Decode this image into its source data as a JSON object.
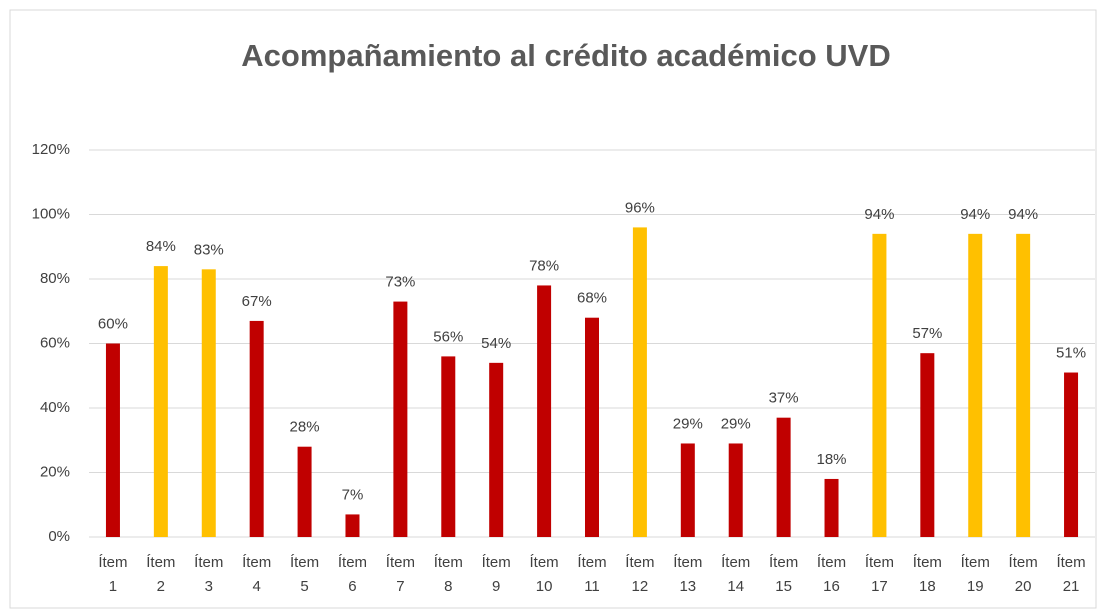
{
  "chart_data": {
    "type": "bar",
    "title": "Acompañamiento al crédito académico UVD",
    "categories": [
      "Ítem 1",
      "Ítem 2",
      "Ítem 3",
      "Ítem 4",
      "Ítem 5",
      "Ítem 6",
      "Ítem 7",
      "Ítem 8",
      "Ítem 9",
      "Ítem 10",
      "Ítem 11",
      "Ítem 12",
      "Ítem 13",
      "Ítem 14",
      "Ítem 15",
      "Ítem 16",
      "Ítem 17",
      "Ítem 18",
      "Ítem 19",
      "Ítem 20",
      "Ítem 21"
    ],
    "values": [
      60,
      84,
      83,
      67,
      28,
      7,
      73,
      56,
      54,
      78,
      68,
      96,
      29,
      29,
      37,
      18,
      94,
      57,
      94,
      94,
      51
    ],
    "value_labels": [
      "60%",
      "84%",
      "83%",
      "67%",
      "28%",
      "7%",
      "73%",
      "56%",
      "54%",
      "78%",
      "68%",
      "96%",
      "29%",
      "29%",
      "37%",
      "18%",
      "94%",
      "57%",
      "94%",
      "94%",
      "51%"
    ],
    "colors": [
      "#c00000",
      "#ffc000",
      "#ffc000",
      "#c00000",
      "#c00000",
      "#c00000",
      "#c00000",
      "#c00000",
      "#c00000",
      "#c00000",
      "#c00000",
      "#ffc000",
      "#c00000",
      "#c00000",
      "#c00000",
      "#c00000",
      "#ffc000",
      "#c00000",
      "#ffc000",
      "#ffc000",
      "#c00000"
    ],
    "ylim": [
      0,
      120
    ],
    "yticks": [
      {
        "value": 0,
        "label": "0%"
      },
      {
        "value": 20,
        "label": "20%"
      },
      {
        "value": 40,
        "label": "40%"
      },
      {
        "value": 60,
        "label": "60%"
      },
      {
        "value": 80,
        "label": "80%"
      },
      {
        "value": 100,
        "label": "100%"
      },
      {
        "value": 120,
        "label": "120%"
      }
    ],
    "grid": true
  }
}
